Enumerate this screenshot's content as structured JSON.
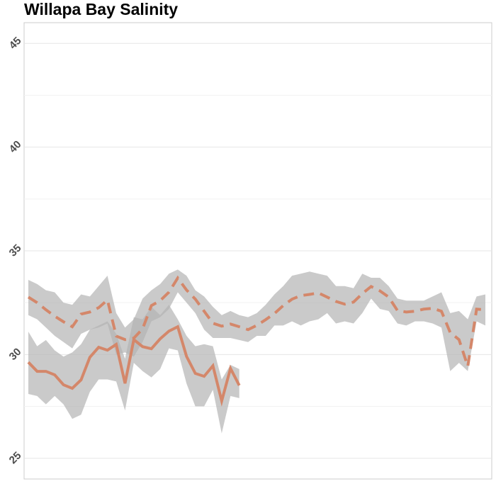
{
  "chart_data": {
    "type": "line",
    "title": "Willapa Bay Salinity",
    "categories": [
      null,
      null,
      null,
      null,
      null,
      null,
      null,
      null,
      null,
      null,
      null,
      null,
      null,
      null,
      null,
      null,
      null,
      null,
      null,
      null,
      null,
      null,
      null,
      null,
      null,
      null,
      null,
      null,
      null,
      null,
      null,
      null,
      null,
      null,
      null,
      null,
      null,
      null,
      null,
      null,
      null,
      null,
      null,
      null,
      null,
      null,
      null,
      null,
      null,
      null,
      null,
      null,
      null
    ],
    "ylim": [
      24,
      46
    ],
    "yticks": [
      25,
      30,
      35,
      40,
      45
    ],
    "grid": true,
    "band_color": "#b3b3b3",
    "series": [
      {
        "color": "#d4876a",
        "dash": false,
        "values": [
          29.63,
          29.19,
          29.19,
          29.02,
          28.54,
          28.37,
          28.78,
          29.87,
          30.35,
          30.21,
          30.49,
          28.61,
          30.72,
          30.38,
          30.28,
          30.76,
          31.13,
          31.34,
          29.91,
          29.09,
          28.95,
          29.46,
          27.76,
          29.33,
          28.51,
          null,
          null,
          null,
          null,
          null,
          null,
          null,
          null,
          null,
          null,
          null,
          null,
          null,
          null,
          null,
          null,
          null,
          null,
          null,
          null,
          null,
          null,
          null,
          null,
          null,
          null,
          null,
          null
        ],
        "upper": [
          31.1,
          30.4,
          30.7,
          30.2,
          29.9,
          30.1,
          30.5,
          31.2,
          31.4,
          31.6,
          31.0,
          29.8,
          31.8,
          31.7,
          32.3,
          31.9,
          32.4,
          31.7,
          30.9,
          30.4,
          30.5,
          30.4,
          28.8,
          29.5,
          29.3,
          null,
          null,
          null,
          null,
          null,
          null,
          null,
          null,
          null,
          null,
          null,
          null,
          null,
          null,
          null,
          null,
          null,
          null,
          null,
          null,
          null,
          null,
          null,
          null,
          null,
          null,
          null,
          null
        ],
        "lower": [
          28.1,
          28.0,
          27.6,
          28.0,
          27.6,
          26.9,
          27.1,
          28.2,
          28.8,
          28.8,
          28.7,
          27.3,
          29.6,
          29.2,
          28.9,
          29.3,
          30.3,
          30.2,
          28.6,
          27.5,
          27.5,
          28.3,
          26.2,
          28.0,
          27.9,
          null,
          null,
          null,
          null,
          null,
          null,
          null,
          null,
          null,
          null,
          null,
          null,
          null,
          null,
          null,
          null,
          null,
          null,
          null,
          null,
          null,
          null,
          null,
          null,
          null,
          null,
          null,
          null
        ]
      },
      {
        "color": "#d4876a",
        "dash": true,
        "values": [
          32.77,
          32.5,
          32.16,
          31.85,
          31.58,
          31.34,
          31.95,
          32.05,
          32.26,
          32.63,
          30.89,
          30.72,
          30.79,
          31.24,
          32.36,
          32.6,
          33.01,
          33.69,
          33.11,
          32.67,
          32.09,
          31.51,
          31.37,
          31.47,
          31.34,
          31.2,
          31.41,
          31.68,
          31.98,
          32.36,
          32.67,
          32.84,
          32.9,
          32.97,
          32.77,
          32.56,
          32.43,
          32.53,
          32.94,
          33.28,
          33.07,
          32.77,
          32.12,
          32.05,
          32.09,
          32.19,
          32.23,
          32.09,
          31.06,
          30.72,
          29.43,
          32.19,
          32.16
        ],
        "upper": [
          33.6,
          33.4,
          33.1,
          33.0,
          32.5,
          32.4,
          32.9,
          32.8,
          33.3,
          33.8,
          32.0,
          31.3,
          31.7,
          32.7,
          33.1,
          33.4,
          33.9,
          34.1,
          33.8,
          33.1,
          32.8,
          32.3,
          31.9,
          32.1,
          31.9,
          31.8,
          32.0,
          32.4,
          32.9,
          33.3,
          33.8,
          33.9,
          34.0,
          33.9,
          33.8,
          33.3,
          33.3,
          33.2,
          33.9,
          33.7,
          33.7,
          33.3,
          32.7,
          32.6,
          32.6,
          32.6,
          32.8,
          33.0,
          32.0,
          32.1,
          31.7,
          32.8,
          32.9
        ],
        "lower": [
          31.9,
          31.7,
          31.3,
          30.9,
          30.6,
          30.3,
          31.0,
          31.2,
          31.3,
          31.5,
          30.0,
          30.1,
          29.9,
          30.6,
          31.6,
          31.8,
          32.2,
          33.0,
          32.5,
          32.0,
          31.2,
          30.8,
          30.8,
          30.8,
          30.7,
          30.6,
          30.9,
          30.9,
          31.4,
          31.4,
          31.6,
          31.4,
          31.6,
          31.7,
          32.0,
          31.5,
          31.6,
          31.5,
          32.0,
          32.7,
          32.2,
          32.1,
          31.5,
          31.4,
          31.6,
          31.6,
          31.5,
          31.3,
          29.2,
          29.6,
          29.2,
          31.6,
          31.4
        ]
      }
    ]
  }
}
